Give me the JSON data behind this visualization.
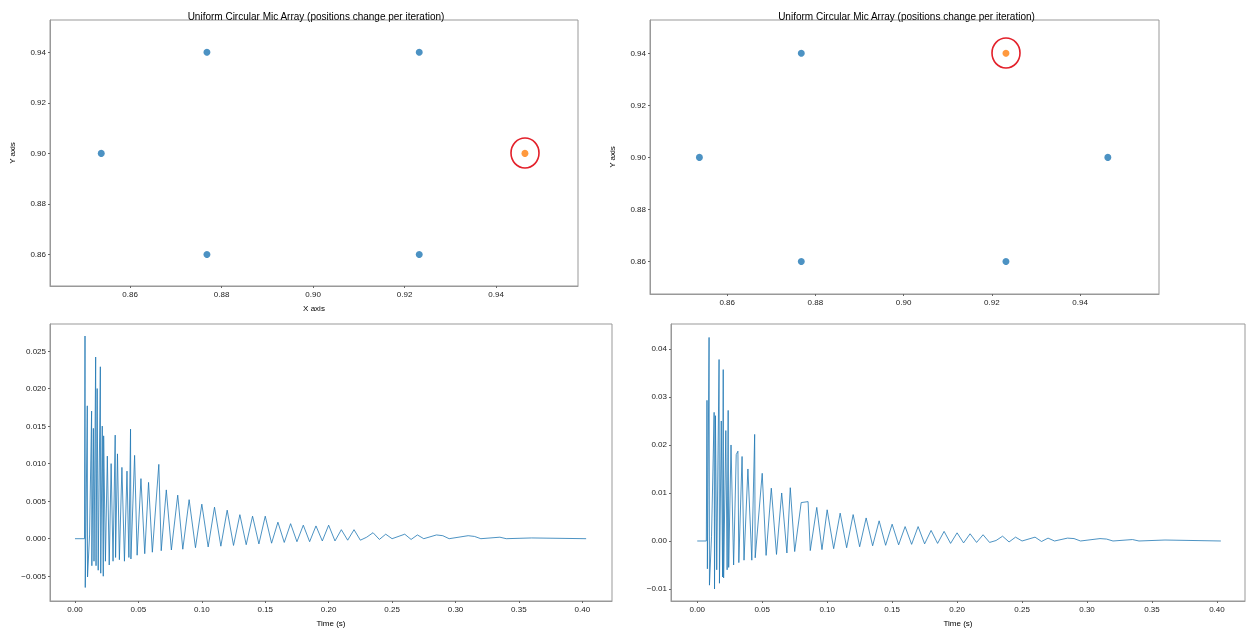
{
  "chart_data": [
    {
      "type": "scatter",
      "title": "Uniform Circular Mic Array (positions change per iteration)",
      "xlabel": "X axis",
      "ylabel": "Y axis",
      "marker": "circle",
      "grid": false,
      "xlim": [
        0.8425,
        0.9579
      ],
      "xticks": [
        {
          "value": 0.86,
          "label": "0.86"
        },
        {
          "value": 0.88,
          "label": "0.88"
        },
        {
          "value": 0.9,
          "label": "0.90"
        },
        {
          "value": 0.92,
          "label": "0.92"
        },
        {
          "value": 0.94,
          "label": "0.94"
        }
      ],
      "ylim": [
        0.8475,
        0.9528
      ],
      "yticks": [
        {
          "value": 0.86,
          "label": "0.86"
        },
        {
          "value": 0.88,
          "label": "0.88"
        },
        {
          "value": 0.9,
          "label": "0.90"
        },
        {
          "value": 0.92,
          "label": "0.92"
        },
        {
          "value": 0.94,
          "label": "0.94"
        }
      ],
      "series": [
        {
          "color": "#1f77b4",
          "x": [
            0.8537,
            0.8768,
            0.9232,
            0.8768,
            0.9232
          ],
          "values": [
            0.9,
            0.94,
            0.94,
            0.86,
            0.86
          ]
        },
        {
          "color": "#ff7f0e",
          "x": [
            0.9463
          ],
          "values": [
            0.9
          ]
        }
      ]
    },
    {
      "type": "scatter",
      "title": "Uniform Circular Mic Array (positions change per iteration)",
      "ylabel": "Y axis",
      "marker": "circle",
      "grid": false,
      "xlim": [
        0.8425,
        0.9579
      ],
      "xticks": [
        {
          "value": 0.86,
          "label": "0.86"
        },
        {
          "value": 0.88,
          "label": "0.88"
        },
        {
          "value": 0.9,
          "label": "0.90"
        },
        {
          "value": 0.92,
          "label": "0.92"
        },
        {
          "value": 0.94,
          "label": "0.94"
        }
      ],
      "ylim": [
        0.8475,
        0.9528
      ],
      "yticks": [
        {
          "value": 0.86,
          "label": "0.86"
        },
        {
          "value": 0.88,
          "label": "0.88"
        },
        {
          "value": 0.9,
          "label": "0.90"
        },
        {
          "value": 0.92,
          "label": "0.92"
        },
        {
          "value": 0.94,
          "label": "0.94"
        }
      ],
      "series": [
        {
          "color": "#1f77b4",
          "x": [
            0.8537,
            0.8768,
            0.8768,
            0.9232,
            0.9463
          ],
          "values": [
            0.9,
            0.94,
            0.86,
            0.86,
            0.9
          ]
        },
        {
          "color": "#ff7f0e",
          "x": [
            0.9232
          ],
          "values": [
            0.94
          ]
        }
      ]
    },
    {
      "type": "line",
      "xlabel": "Time (s)",
      "marker": "none",
      "line_style": "solid",
      "grid": false,
      "color": "#1f77b4",
      "xlim": [
        -0.0197,
        0.4234
      ],
      "xticks": [
        {
          "value": 0,
          "label": "0.00"
        },
        {
          "value": 0.05,
          "label": "0.05"
        },
        {
          "value": 0.1,
          "label": "0.10"
        },
        {
          "value": 0.15,
          "label": "0.15"
        },
        {
          "value": 0.2,
          "label": "0.20"
        },
        {
          "value": 0.25,
          "label": "0.25"
        },
        {
          "value": 0.3,
          "label": "0.30"
        },
        {
          "value": 0.35,
          "label": "0.35"
        },
        {
          "value": 0.4,
          "label": "0.40"
        }
      ],
      "ylim": [
        -0.0083,
        0.0286
      ],
      "yticks": [
        {
          "value": -0.005,
          "label": "−0.005"
        },
        {
          "value": 0,
          "label": "0.000"
        },
        {
          "value": 0.005,
          "label": "0.005"
        },
        {
          "value": 0.01,
          "label": "0.010"
        },
        {
          "value": 0.015,
          "label": "0.015"
        },
        {
          "value": 0.02,
          "label": "0.020"
        },
        {
          "value": 0.025,
          "label": "0.025"
        }
      ],
      "x": [
        0,
        0.0075,
        0.0079,
        0.0081,
        0.0097,
        0.0099,
        0.0115,
        0.0131,
        0.0133,
        0.0145,
        0.015,
        0.0163,
        0.0166,
        0.0175,
        0.0183,
        0.02,
        0.0203,
        0.0215,
        0.0223,
        0.0226,
        0.024,
        0.0255,
        0.027,
        0.0285,
        0.03,
        0.0317,
        0.032,
        0.0335,
        0.035,
        0.037,
        0.039,
        0.041,
        0.0425,
        0.0438,
        0.0441,
        0.047,
        0.049,
        0.052,
        0.055,
        0.058,
        0.061,
        0.0661,
        0.068,
        0.072,
        0.076,
        0.081,
        0.085,
        0.09,
        0.095,
        0.1,
        0.105,
        0.11,
        0.115,
        0.12,
        0.125,
        0.13,
        0.135,
        0.14,
        0.145,
        0.15,
        0.155,
        0.16,
        0.165,
        0.17,
        0.175,
        0.18,
        0.185,
        0.19,
        0.195,
        0.2,
        0.205,
        0.21,
        0.215,
        0.22,
        0.225,
        0.23,
        0.235,
        0.24,
        0.245,
        0.25,
        0.26,
        0.265,
        0.27,
        0.275,
        0.285,
        0.29,
        0.295,
        0.31,
        0.315,
        0.32,
        0.335,
        0.34,
        0.36,
        0.403
      ],
      "values": [
        0,
        0,
        0.027,
        -0.0065,
        0.0177,
        -0.0051,
        0.0005,
        0.017,
        -0.0036,
        0.0147,
        -0.003,
        0.0242,
        -0.0036,
        0.02,
        -0.0042,
        0.0229,
        -0.0046,
        0.015,
        -0.005,
        0.0137,
        -0.003,
        0.011,
        -0.0035,
        0.01,
        -0.003,
        0.0138,
        -0.0025,
        0.0113,
        -0.0028,
        0.0095,
        -0.003,
        0.009,
        -0.0025,
        0.0146,
        -0.0027,
        0.0111,
        -0.0022,
        0.008,
        -0.002,
        0.0075,
        -0.0018,
        0.0099,
        -0.0016,
        0.0065,
        -0.0015,
        0.0058,
        -0.0014,
        0.0052,
        -0.0012,
        0.0046,
        -0.0011,
        0.0042,
        -0.001,
        0.0038,
        -0.0009,
        0.0032,
        -0.0008,
        0.003,
        -0.0007,
        0.003,
        -0.0006,
        0.0022,
        -0.0005,
        0.002,
        -0.0004,
        0.0018,
        -0.0004,
        0.0017,
        -0.0003,
        0.0018,
        -0.0003,
        0.0012,
        -0.0002,
        0.0012,
        -0.0002,
        0.0002,
        0.0008,
        -0.0001,
        0.0006,
        0,
        0.0006,
        -0.0001,
        0.0005,
        0,
        0.0005,
        0.0004,
        0,
        0.0004,
        0.0003,
        0,
        0.0002,
        0,
        0.0001,
        0
      ]
    },
    {
      "type": "line",
      "xlabel": "Time (s)",
      "marker": "none",
      "line_style": "solid",
      "grid": false,
      "color": "#1f77b4",
      "xlim": [
        -0.0202,
        0.4216
      ],
      "xticks": [
        {
          "value": 0,
          "label": "0.00"
        },
        {
          "value": 0.05,
          "label": "0.05"
        },
        {
          "value": 0.1,
          "label": "0.10"
        },
        {
          "value": 0.15,
          "label": "0.15"
        },
        {
          "value": 0.2,
          "label": "0.20"
        },
        {
          "value": 0.25,
          "label": "0.25"
        },
        {
          "value": 0.3,
          "label": "0.30"
        },
        {
          "value": 0.35,
          "label": "0.35"
        },
        {
          "value": 0.4,
          "label": "0.40"
        }
      ],
      "ylim": [
        -0.0125,
        0.0452
      ],
      "yticks": [
        {
          "value": -0.01,
          "label": "−0.01"
        },
        {
          "value": 0,
          "label": "0.00"
        },
        {
          "value": 0.01,
          "label": "0.01"
        },
        {
          "value": 0.02,
          "label": "0.02"
        },
        {
          "value": 0.03,
          "label": "0.03"
        },
        {
          "value": 0.04,
          "label": "0.04"
        }
      ],
      "x": [
        0,
        0.007,
        0.0075,
        0.0078,
        0.0091,
        0.0094,
        0.011,
        0.013,
        0.0133,
        0.014,
        0.015,
        0.0168,
        0.0171,
        0.0185,
        0.0195,
        0.02,
        0.0203,
        0.022,
        0.023,
        0.0238,
        0.0242,
        0.026,
        0.028,
        0.03,
        0.0313,
        0.032,
        0.0345,
        0.036,
        0.039,
        0.042,
        0.0442,
        0.0446,
        0.05,
        0.053,
        0.057,
        0.061,
        0.065,
        0.069,
        0.0716,
        0.075,
        0.08,
        0.0853,
        0.087,
        0.092,
        0.096,
        0.1,
        0.105,
        0.11,
        0.115,
        0.12,
        0.125,
        0.13,
        0.135,
        0.14,
        0.145,
        0.15,
        0.155,
        0.16,
        0.165,
        0.17,
        0.175,
        0.18,
        0.185,
        0.19,
        0.195,
        0.2,
        0.205,
        0.21,
        0.215,
        0.22,
        0.225,
        0.23,
        0.235,
        0.24,
        0.245,
        0.25,
        0.26,
        0.265,
        0.27,
        0.275,
        0.285,
        0.29,
        0.295,
        0.31,
        0.315,
        0.32,
        0.335,
        0.34,
        0.36,
        0.403
      ],
      "values": [
        0,
        0,
        0.0293,
        -0.0058,
        0.0424,
        -0.0092,
        0.001,
        0.0268,
        -0.01,
        0.0261,
        -0.006,
        0.0378,
        -0.0088,
        0.025,
        -0.0075,
        0.0357,
        -0.0077,
        0.023,
        -0.006,
        0.0272,
        -0.0055,
        0.02,
        -0.005,
        0.018,
        0.0187,
        -0.0045,
        0.0176,
        -0.004,
        0.015,
        -0.004,
        0.0222,
        -0.0035,
        0.0141,
        -0.003,
        0.011,
        -0.0028,
        0.01,
        -0.0025,
        0.0111,
        -0.0022,
        0.008,
        0.0082,
        -0.002,
        0.007,
        -0.0018,
        0.0065,
        -0.0016,
        0.0058,
        -0.0014,
        0.0055,
        -0.0012,
        0.0048,
        -0.001,
        0.0042,
        -0.0009,
        0.0035,
        -0.0008,
        0.003,
        -0.0007,
        0.003,
        -0.0006,
        0.0022,
        -0.0005,
        0.002,
        -0.0005,
        0.0017,
        -0.0004,
        0.0015,
        -0.0003,
        0.0013,
        -0.0003,
        0.0001,
        0.001,
        -0.0002,
        0.0008,
        0,
        0.0008,
        -0.0001,
        0.0006,
        0,
        0.0006,
        0.0005,
        0,
        0.0005,
        0.0004,
        0,
        0.0003,
        0,
        0.0002,
        0
      ]
    }
  ]
}
